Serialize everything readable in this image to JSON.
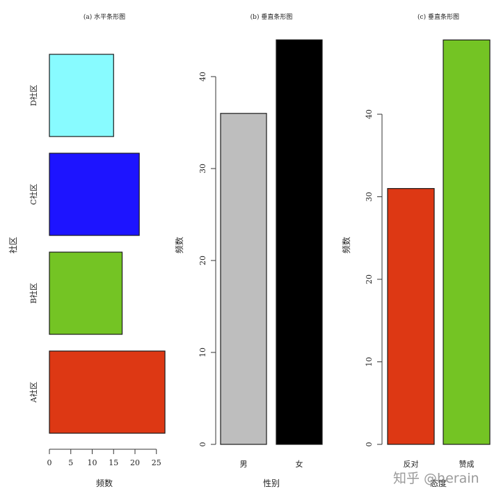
{
  "chart_data": [
    {
      "type": "bar",
      "orientation": "horizontal",
      "title": "(a) 水平条形图",
      "categories": [
        "A社区",
        "B社区",
        "C社区",
        "D社区"
      ],
      "values": [
        27,
        17,
        21,
        15
      ],
      "colors": [
        "#dd3814",
        "#74c424",
        "#1d14ff",
        "#88fbff"
      ],
      "xlabel": "频数",
      "ylabel": "社区",
      "xlim": [
        0,
        27
      ],
      "xticks": [
        "0",
        "5",
        "10",
        "15",
        "20",
        "25"
      ],
      "grid": false
    },
    {
      "type": "bar",
      "orientation": "vertical",
      "title": "(b) 垂直条形图",
      "categories": [
        "男",
        "女"
      ],
      "values": [
        36,
        44
      ],
      "colors": [
        "#bebebe",
        "#000000"
      ],
      "xlabel": "性别",
      "ylabel": "频数",
      "ylim": [
        0,
        44
      ],
      "yticks": [
        "0",
        "10",
        "20",
        "30",
        "40"
      ],
      "grid": false
    },
    {
      "type": "bar",
      "orientation": "vertical",
      "title": "(c) 垂直条形图",
      "categories": [
        "反对",
        "赞成"
      ],
      "values": [
        31,
        49
      ],
      "colors": [
        "#dd3814",
        "#74c424"
      ],
      "xlabel": "态度",
      "ylabel": "频数",
      "ylim": [
        0,
        49
      ],
      "yticks": [
        "0",
        "10",
        "20",
        "30",
        "40"
      ],
      "grid": false
    }
  ],
  "watermark": "知乎 @herain"
}
